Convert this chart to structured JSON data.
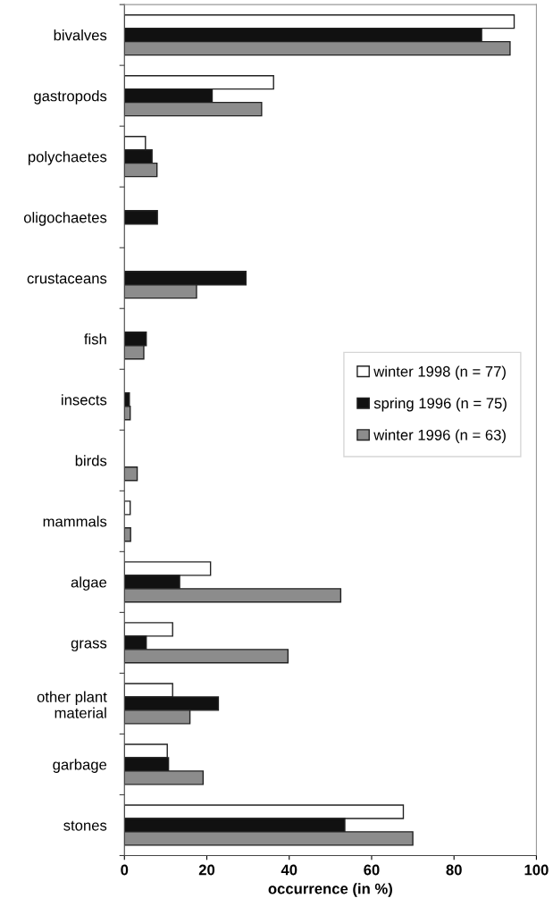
{
  "chart_data": {
    "type": "bar",
    "orientation": "horizontal",
    "xlabel": "occurrence (in %)",
    "categories": [
      "bivalves",
      "gastropods",
      "polychaetes",
      "oligochaetes",
      "crustaceans",
      "fish",
      "insects",
      "birds",
      "mammals",
      "algae",
      "grass",
      "other plant\nmaterial",
      "garbage",
      "stones"
    ],
    "series": [
      {
        "name": "winter 1998 (n = 77)",
        "color": "#ffffff",
        "values": [
          94.6,
          36.2,
          5.1,
          null,
          null,
          null,
          null,
          null,
          1.4,
          20.9,
          11.7,
          11.7,
          10.4,
          67.7
        ]
      },
      {
        "name": "spring 1996 (n = 75)",
        "color": "#111111",
        "values": [
          86.7,
          21.3,
          6.7,
          8.0,
          29.5,
          5.3,
          1.2,
          null,
          null,
          13.4,
          5.3,
          22.8,
          10.7,
          53.5
        ]
      },
      {
        "name": "winter 1996 (n = 63)",
        "color": "#8c8c8c",
        "values": [
          93.6,
          33.3,
          7.9,
          null,
          17.5,
          4.7,
          1.4,
          3.1,
          1.5,
          52.5,
          39.7,
          15.9,
          19.1,
          70.0
        ]
      }
    ],
    "xlim": [
      0,
      100
    ],
    "xticks": [
      0,
      20,
      40,
      60,
      80,
      100
    ],
    "grid": false,
    "legend": "right"
  }
}
